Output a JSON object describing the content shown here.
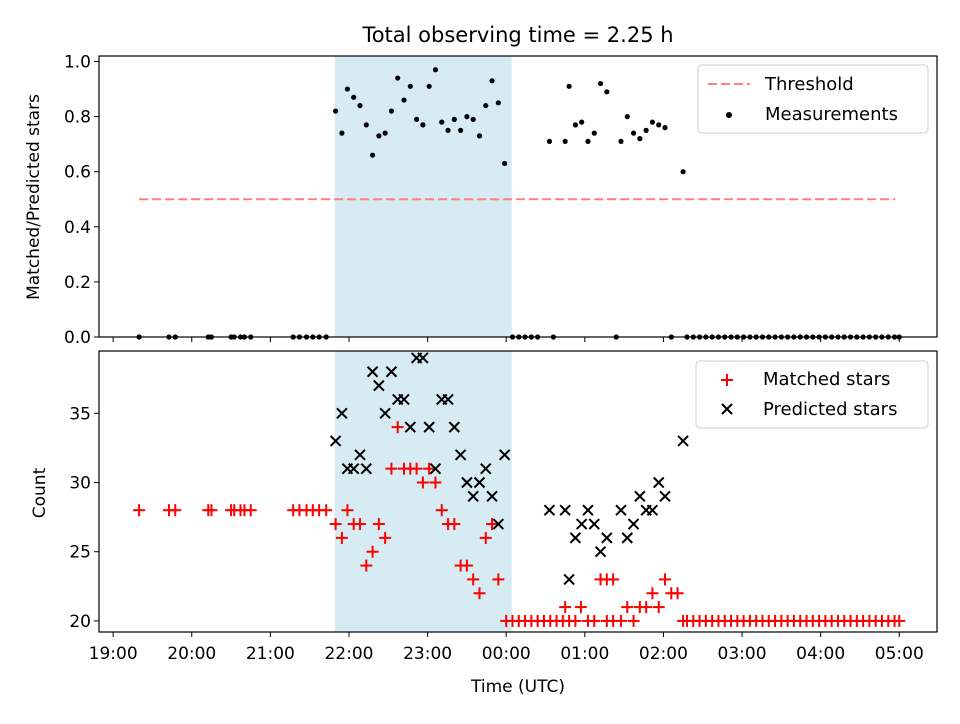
{
  "figure": {
    "title": "Total observing time = 2.25 h"
  },
  "colors": {
    "band": "#add8e6",
    "threshold": "#ff7f7f",
    "measurement": "#000000",
    "matched": "#ff0000",
    "predicted": "#000000"
  },
  "chart_data": [
    {
      "type": "scatter",
      "ylabel": "Matched/Predicted stars",
      "xlabel": "",
      "x_unit": "hours since 19:00 UTC",
      "xlim": [
        18.82,
        29.48
      ],
      "ylim": [
        0,
        1.02
      ],
      "yticks": [
        0.0,
        0.2,
        0.4,
        0.6,
        0.8,
        1.0
      ],
      "ytick_labels": [
        "0.0",
        "0.2",
        "0.4",
        "0.6",
        "0.8",
        "1.0"
      ],
      "shaded_band": [
        21.82,
        24.07
      ],
      "threshold": {
        "value": 0.5,
        "x_range": [
          19.33,
          28.95
        ],
        "label": "Threshold"
      },
      "legend": {
        "position": "upper right",
        "entries": [
          "Threshold",
          "Measurements"
        ]
      },
      "series": [
        {
          "name": "Measurements",
          "marker": "dot",
          "points": [
            [
              19.33,
              0
            ],
            [
              19.71,
              0
            ],
            [
              19.79,
              0
            ],
            [
              20.21,
              0
            ],
            [
              20.25,
              0
            ],
            [
              20.5,
              0
            ],
            [
              20.54,
              0
            ],
            [
              20.62,
              0
            ],
            [
              20.67,
              0
            ],
            [
              20.75,
              0
            ],
            [
              21.29,
              0
            ],
            [
              21.37,
              0
            ],
            [
              21.46,
              0
            ],
            [
              21.54,
              0
            ],
            [
              21.62,
              0
            ],
            [
              21.71,
              0
            ],
            [
              21.83,
              0.82
            ],
            [
              21.91,
              0.74
            ],
            [
              21.98,
              0.9
            ],
            [
              22.06,
              0.87
            ],
            [
              22.14,
              0.84
            ],
            [
              22.22,
              0.77
            ],
            [
              22.3,
              0.66
            ],
            [
              22.38,
              0.73
            ],
            [
              22.46,
              0.74
            ],
            [
              22.54,
              0.82
            ],
            [
              22.62,
              0.94
            ],
            [
              22.7,
              0.86
            ],
            [
              22.78,
              0.91
            ],
            [
              22.86,
              0.79
            ],
            [
              22.94,
              0.77
            ],
            [
              23.02,
              0.91
            ],
            [
              23.1,
              0.97
            ],
            [
              23.18,
              0.78
            ],
            [
              23.26,
              0.75
            ],
            [
              23.34,
              0.79
            ],
            [
              23.42,
              0.75
            ],
            [
              23.5,
              0.8
            ],
            [
              23.58,
              0.79
            ],
            [
              23.66,
              0.73
            ],
            [
              23.74,
              0.84
            ],
            [
              23.82,
              0.93
            ],
            [
              23.9,
              0.85
            ],
            [
              23.98,
              0.63
            ],
            [
              24.08,
              0
            ],
            [
              24.16,
              0
            ],
            [
              24.24,
              0
            ],
            [
              24.32,
              0
            ],
            [
              24.4,
              0
            ],
            [
              24.6,
              0
            ],
            [
              24.55,
              0.71
            ],
            [
              24.75,
              0.71
            ],
            [
              24.8,
              0.91
            ],
            [
              24.88,
              0.77
            ],
            [
              24.96,
              0.78
            ],
            [
              25.04,
              0.71
            ],
            [
              25.12,
              0.74
            ],
            [
              25.2,
              0.92
            ],
            [
              25.28,
              0.89
            ],
            [
              25.4,
              0
            ],
            [
              25.46,
              0.71
            ],
            [
              25.54,
              0.8
            ],
            [
              25.62,
              0.74
            ],
            [
              25.7,
              0.72
            ],
            [
              25.78,
              0.75
            ],
            [
              25.86,
              0.78
            ],
            [
              25.94,
              0.77
            ],
            [
              26.02,
              0.76
            ],
            [
              26.1,
              0
            ],
            [
              26.25,
              0.6
            ],
            [
              26.3,
              0
            ],
            [
              26.38,
              0
            ],
            [
              26.46,
              0
            ],
            [
              26.54,
              0
            ],
            [
              26.62,
              0
            ],
            [
              26.7,
              0
            ],
            [
              26.78,
              0
            ],
            [
              26.86,
              0
            ],
            [
              26.94,
              0
            ],
            [
              27.02,
              0
            ],
            [
              27.1,
              0
            ],
            [
              27.18,
              0
            ],
            [
              27.26,
              0
            ],
            [
              27.34,
              0
            ],
            [
              27.42,
              0
            ],
            [
              27.5,
              0
            ],
            [
              27.58,
              0
            ],
            [
              27.66,
              0
            ],
            [
              27.74,
              0
            ],
            [
              27.82,
              0
            ],
            [
              27.9,
              0
            ],
            [
              27.98,
              0
            ],
            [
              28.06,
              0
            ],
            [
              28.14,
              0
            ],
            [
              28.22,
              0
            ],
            [
              28.3,
              0
            ],
            [
              28.38,
              0
            ],
            [
              28.46,
              0
            ],
            [
              28.54,
              0
            ],
            [
              28.62,
              0
            ],
            [
              28.7,
              0
            ],
            [
              28.78,
              0
            ],
            [
              28.86,
              0
            ],
            [
              28.94,
              0
            ],
            [
              29.0,
              0
            ]
          ]
        }
      ]
    },
    {
      "type": "scatter",
      "ylabel": "Count",
      "xlabel": "Time (UTC)",
      "x_unit": "hours since 19:00 UTC",
      "xlim": [
        18.82,
        29.48
      ],
      "ylim": [
        19.2,
        39.5
      ],
      "yticks": [
        20,
        25,
        30,
        35
      ],
      "ytick_labels": [
        "20",
        "25",
        "30",
        "35"
      ],
      "xticks": [
        19,
        20,
        21,
        22,
        23,
        24,
        25,
        26,
        27,
        28,
        29
      ],
      "xtick_labels": [
        "19:00",
        "20:00",
        "21:00",
        "22:00",
        "23:00",
        "00:00",
        "01:00",
        "02:00",
        "03:00",
        "04:00",
        "05:00"
      ],
      "shaded_band": [
        21.82,
        24.07
      ],
      "legend": {
        "position": "upper right",
        "entries": [
          "Matched stars",
          "Predicted stars"
        ]
      },
      "series": [
        {
          "name": "Matched stars",
          "marker": "plus",
          "points": [
            [
              19.33,
              28
            ],
            [
              19.71,
              28
            ],
            [
              19.79,
              28
            ],
            [
              20.21,
              28
            ],
            [
              20.25,
              28
            ],
            [
              20.5,
              28
            ],
            [
              20.54,
              28
            ],
            [
              20.62,
              28
            ],
            [
              20.67,
              28
            ],
            [
              20.75,
              28
            ],
            [
              21.29,
              28
            ],
            [
              21.37,
              28
            ],
            [
              21.46,
              28
            ],
            [
              21.54,
              28
            ],
            [
              21.62,
              28
            ],
            [
              21.71,
              28
            ],
            [
              21.83,
              27
            ],
            [
              21.91,
              26
            ],
            [
              21.98,
              28
            ],
            [
              22.06,
              27
            ],
            [
              22.14,
              27
            ],
            [
              22.22,
              24
            ],
            [
              22.3,
              25
            ],
            [
              22.38,
              27
            ],
            [
              22.46,
              26
            ],
            [
              22.54,
              31
            ],
            [
              22.62,
              34
            ],
            [
              22.7,
              31
            ],
            [
              22.78,
              31
            ],
            [
              22.86,
              31
            ],
            [
              22.94,
              30
            ],
            [
              23.02,
              31
            ],
            [
              23.1,
              30
            ],
            [
              23.18,
              28
            ],
            [
              23.26,
              27
            ],
            [
              23.34,
              27
            ],
            [
              23.42,
              24
            ],
            [
              23.5,
              24
            ],
            [
              23.58,
              23
            ],
            [
              23.66,
              22
            ],
            [
              23.74,
              26
            ],
            [
              23.82,
              27
            ],
            [
              23.9,
              23
            ],
            [
              24.0,
              20
            ],
            [
              24.08,
              20
            ],
            [
              24.16,
              20
            ],
            [
              24.24,
              20
            ],
            [
              24.32,
              20
            ],
            [
              24.4,
              20
            ],
            [
              24.48,
              20
            ],
            [
              24.56,
              20
            ],
            [
              24.64,
              20
            ],
            [
              24.72,
              20
            ],
            [
              24.8,
              20
            ],
            [
              24.75,
              21
            ],
            [
              24.95,
              21
            ],
            [
              24.88,
              20
            ],
            [
              25.04,
              20
            ],
            [
              25.12,
              20
            ],
            [
              25.2,
              23
            ],
            [
              25.28,
              23
            ],
            [
              25.36,
              23
            ],
            [
              25.28,
              20
            ],
            [
              25.36,
              20
            ],
            [
              25.46,
              20
            ],
            [
              25.54,
              21
            ],
            [
              25.62,
              20
            ],
            [
              25.7,
              21
            ],
            [
              25.78,
              21
            ],
            [
              25.86,
              22
            ],
            [
              25.94,
              21
            ],
            [
              26.02,
              23
            ],
            [
              26.1,
              22
            ],
            [
              26.18,
              22
            ],
            [
              26.25,
              20
            ],
            [
              26.3,
              20
            ],
            [
              26.38,
              20
            ],
            [
              26.46,
              20
            ],
            [
              26.54,
              20
            ],
            [
              26.62,
              20
            ],
            [
              26.7,
              20
            ],
            [
              26.78,
              20
            ],
            [
              26.86,
              20
            ],
            [
              26.94,
              20
            ],
            [
              27.02,
              20
            ],
            [
              27.1,
              20
            ],
            [
              27.18,
              20
            ],
            [
              27.26,
              20
            ],
            [
              27.34,
              20
            ],
            [
              27.42,
              20
            ],
            [
              27.5,
              20
            ],
            [
              27.58,
              20
            ],
            [
              27.66,
              20
            ],
            [
              27.74,
              20
            ],
            [
              27.82,
              20
            ],
            [
              27.9,
              20
            ],
            [
              27.98,
              20
            ],
            [
              28.06,
              20
            ],
            [
              28.14,
              20
            ],
            [
              28.22,
              20
            ],
            [
              28.3,
              20
            ],
            [
              28.38,
              20
            ],
            [
              28.46,
              20
            ],
            [
              28.54,
              20
            ],
            [
              28.62,
              20
            ],
            [
              28.7,
              20
            ],
            [
              28.78,
              20
            ],
            [
              28.86,
              20
            ],
            [
              28.94,
              20
            ],
            [
              29.0,
              20
            ]
          ]
        },
        {
          "name": "Predicted stars",
          "marker": "x",
          "points": [
            [
              21.83,
              33
            ],
            [
              21.91,
              35
            ],
            [
              21.98,
              31
            ],
            [
              22.06,
              31
            ],
            [
              22.14,
              32
            ],
            [
              22.22,
              31
            ],
            [
              22.3,
              38
            ],
            [
              22.38,
              37
            ],
            [
              22.46,
              35
            ],
            [
              22.54,
              38
            ],
            [
              22.62,
              36
            ],
            [
              22.7,
              36
            ],
            [
              22.78,
              34
            ],
            [
              22.86,
              39
            ],
            [
              22.94,
              39
            ],
            [
              23.02,
              34
            ],
            [
              23.1,
              31
            ],
            [
              23.18,
              36
            ],
            [
              23.26,
              36
            ],
            [
              23.34,
              34
            ],
            [
              23.42,
              32
            ],
            [
              23.5,
              30
            ],
            [
              23.58,
              29
            ],
            [
              23.66,
              30
            ],
            [
              23.74,
              31
            ],
            [
              23.82,
              29
            ],
            [
              23.9,
              27
            ],
            [
              23.98,
              32
            ],
            [
              24.55,
              28
            ],
            [
              24.75,
              28
            ],
            [
              24.8,
              23
            ],
            [
              24.88,
              26
            ],
            [
              24.96,
              27
            ],
            [
              25.04,
              28
            ],
            [
              25.12,
              27
            ],
            [
              25.2,
              25
            ],
            [
              25.28,
              26
            ],
            [
              25.46,
              28
            ],
            [
              25.54,
              26
            ],
            [
              25.62,
              27
            ],
            [
              25.7,
              29
            ],
            [
              25.78,
              28
            ],
            [
              25.86,
              28
            ],
            [
              25.94,
              30
            ],
            [
              26.02,
              29
            ],
            [
              26.25,
              33
            ]
          ]
        }
      ]
    }
  ]
}
